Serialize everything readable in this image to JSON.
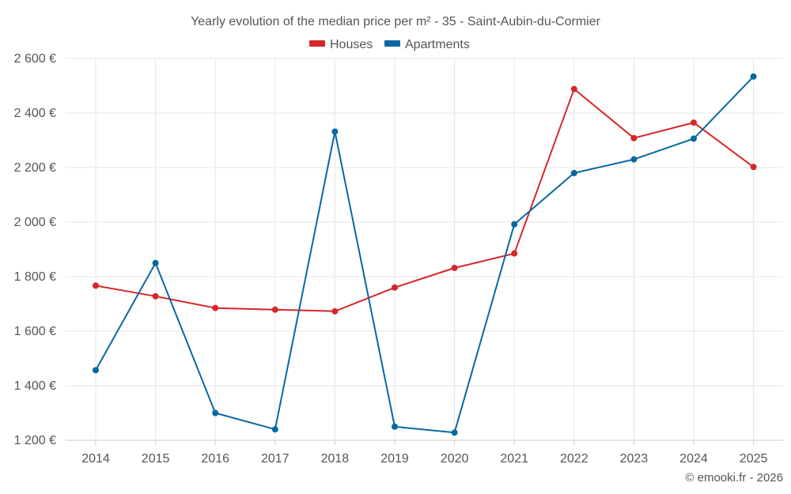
{
  "chart_data": {
    "type": "line",
    "title": "Yearly evolution of the median price per m² - 35 - Saint-Aubin-du-Cormier",
    "categories": [
      "2014",
      "2015",
      "2016",
      "2017",
      "2018",
      "2019",
      "2020",
      "2021",
      "2022",
      "2023",
      "2024",
      "2025"
    ],
    "series": [
      {
        "name": "Houses",
        "color": "#d62728",
        "values": [
          1767,
          1728,
          1685,
          1679,
          1673,
          1760,
          1832,
          1885,
          2488,
          2308,
          2365,
          2202
        ]
      },
      {
        "name": "Apartments",
        "color": "#0868a0",
        "values": [
          1457,
          1850,
          1300,
          1240,
          2332,
          1250,
          1228,
          1992,
          2180,
          2230,
          2306,
          2534
        ]
      }
    ],
    "ylim": [
      1200,
      2600
    ],
    "yticks": [
      1200,
      1400,
      1600,
      1800,
      2000,
      2200,
      2400,
      2600
    ],
    "ytick_labels": [
      "1 200 €",
      "1 400 €",
      "1 600 €",
      "1 800 €",
      "2 000 €",
      "2 200 €",
      "2 400 €",
      "2 600 €"
    ],
    "xlabel": "",
    "ylabel": "",
    "grid": true,
    "legend_position": "top-center",
    "credit": "© emooki.fr - 2026"
  }
}
